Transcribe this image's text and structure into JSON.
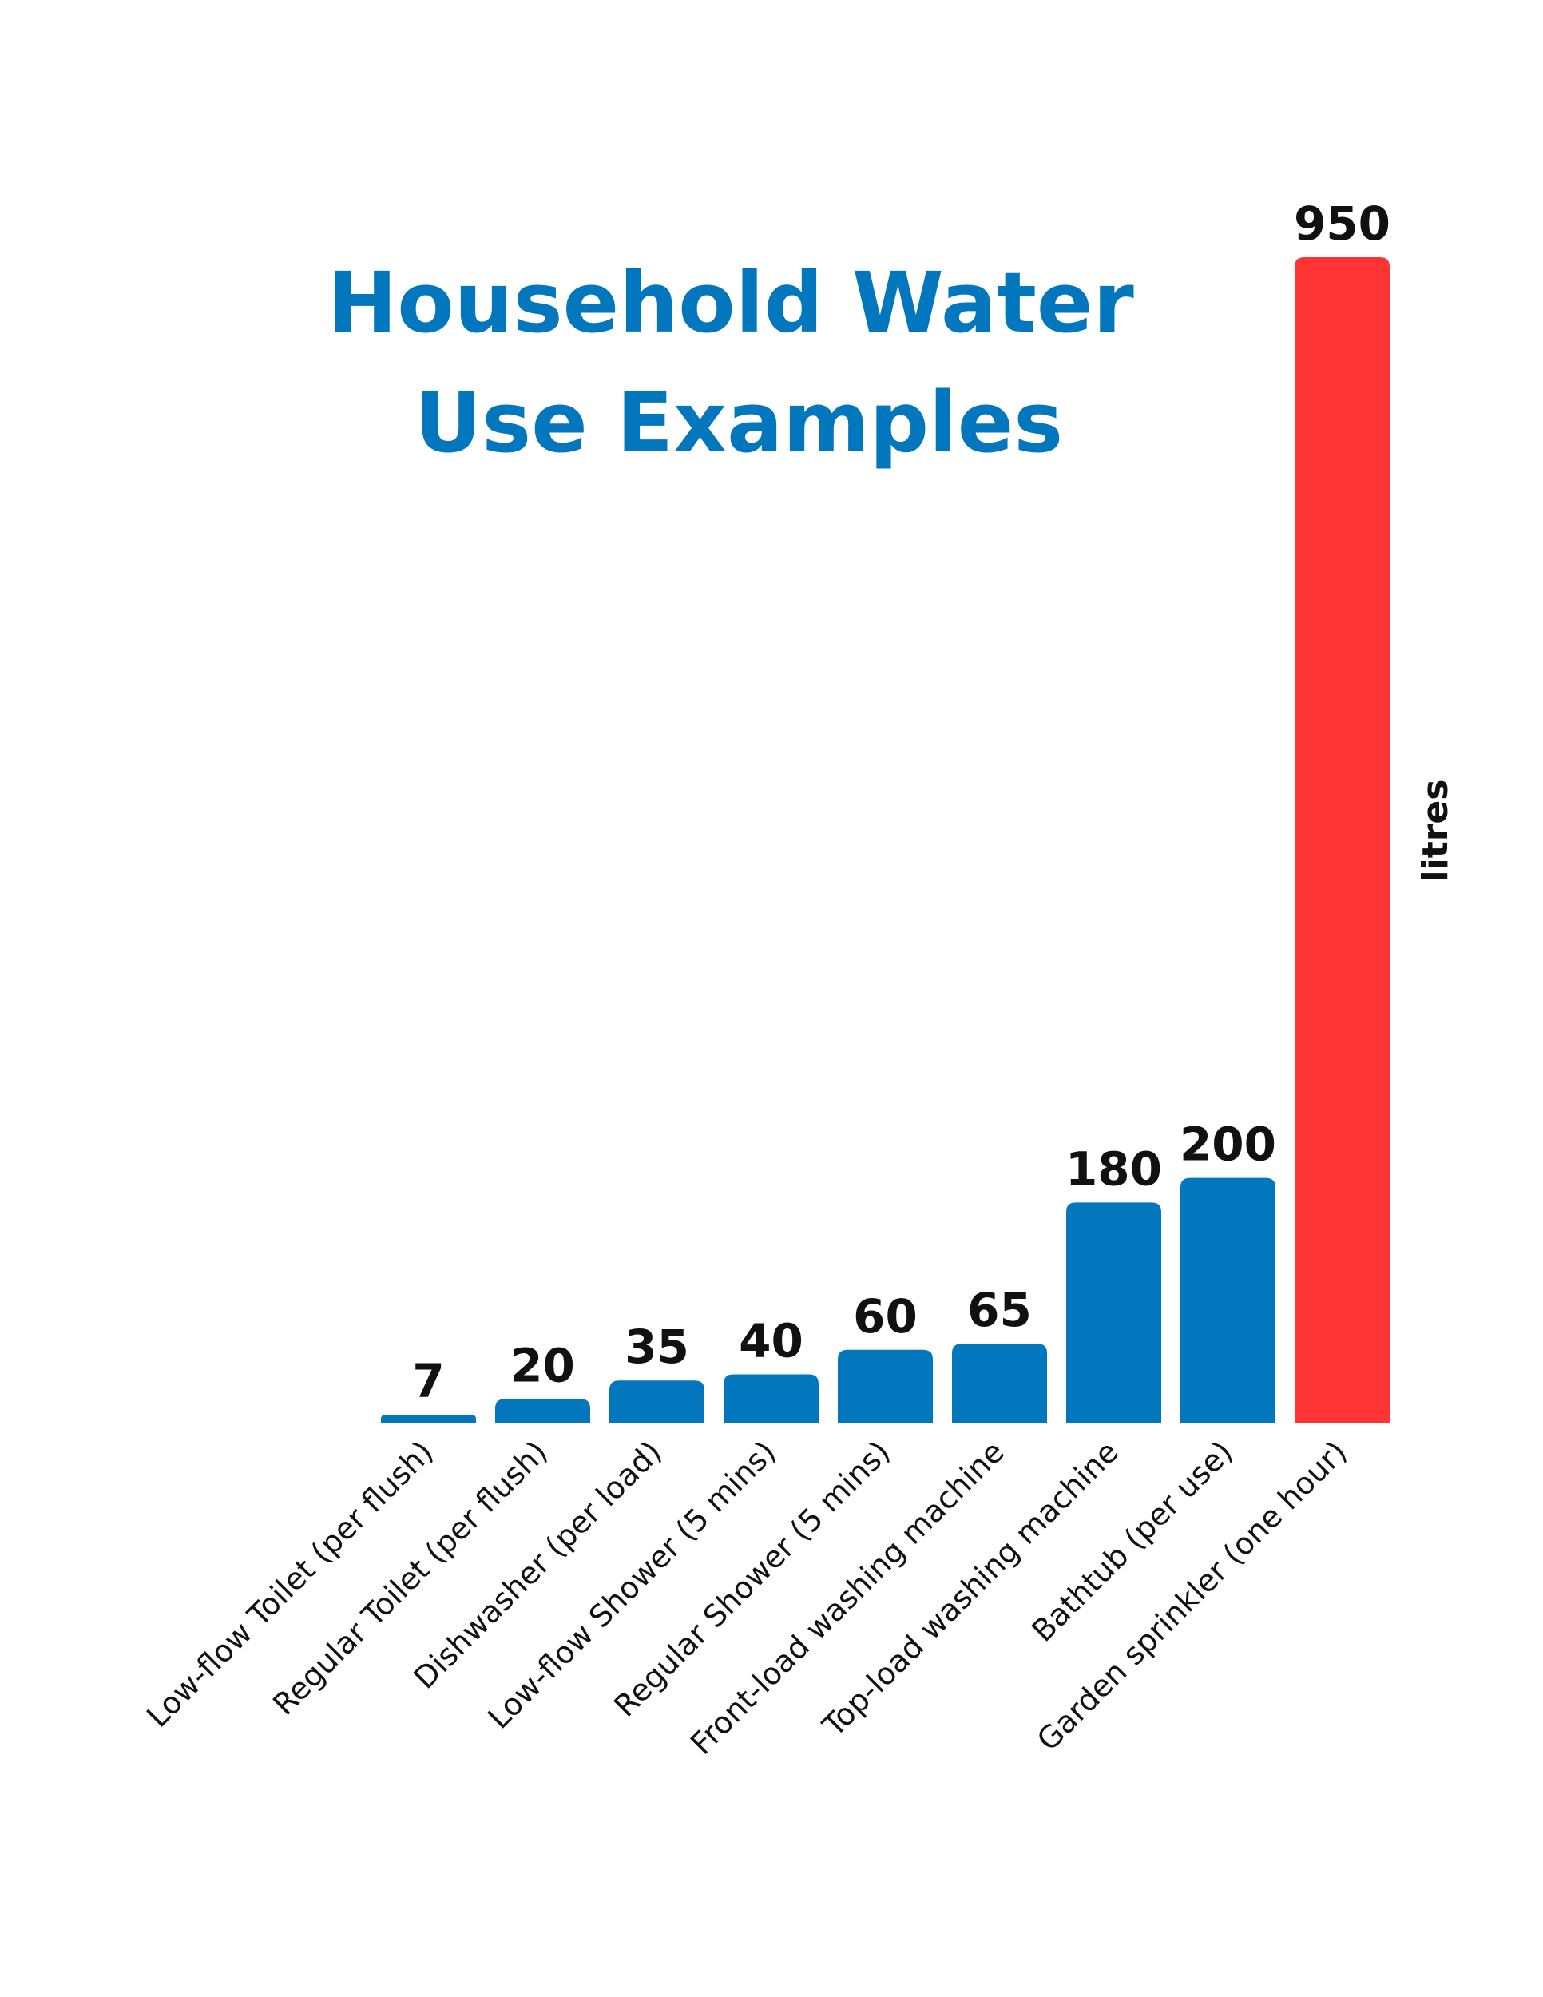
{
  "chart_data": {
    "type": "bar",
    "title_lines": [
      "Household Water",
      "Use Examples"
    ],
    "categories": [
      "Low-flow Toilet (per flush)",
      "Regular Toilet (per flush)",
      "Dishwasher (per load)",
      "Low-flow Shower (5 mins)",
      "Regular Shower (5 mins)",
      "Front-load washing machine",
      "Top-load washing machine",
      "Bathtub (per use)",
      "Garden sprinkler (one hour)"
    ],
    "values": [
      7,
      20,
      35,
      40,
      60,
      65,
      180,
      200,
      950
    ],
    "value_labels": [
      "7",
      "20",
      "35",
      "40",
      "60",
      "65",
      "180",
      "200",
      "950"
    ],
    "ylabel": "litres",
    "ylim": [
      0,
      950
    ],
    "grid": false,
    "legend": "none",
    "colors": {
      "bar": "#0277BD",
      "highlight_bar": "#FF3535",
      "title": "#0277BD",
      "text": "#111111"
    },
    "highlight_index": 8
  }
}
